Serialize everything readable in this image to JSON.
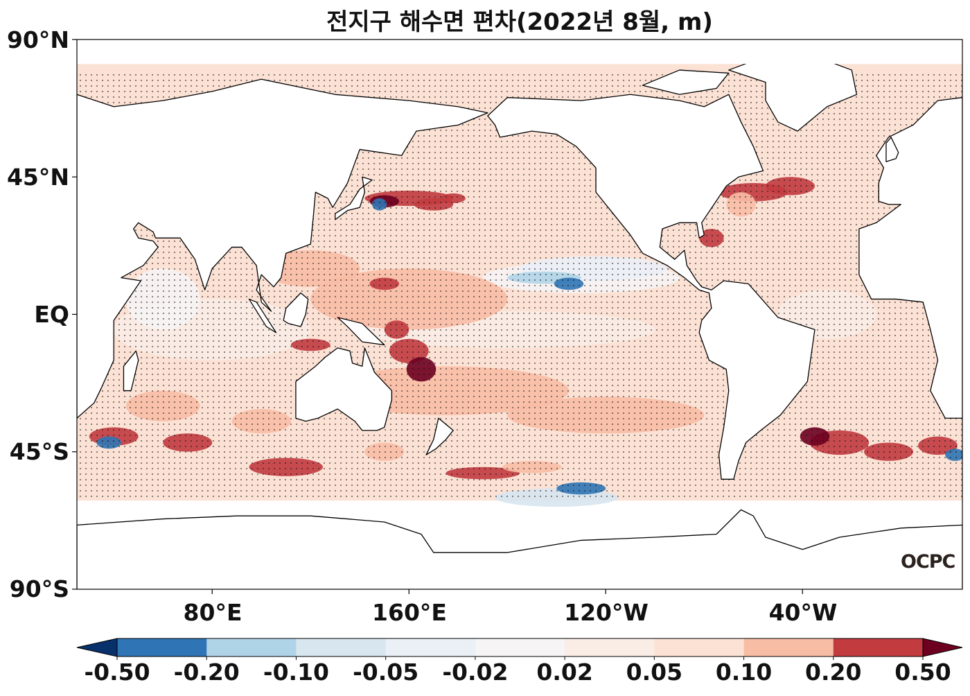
{
  "title": "전지구 해수면 편차(2022년 8월, m)",
  "axes": {
    "lat_ticks": [
      "90°N",
      "45°N",
      "EQ",
      "45°S",
      "90°S"
    ],
    "lon_ticks": [
      "80°E",
      "160°E",
      "120°W",
      "40°W"
    ],
    "lon_range": [
      25,
      385
    ],
    "lat_range": [
      -90,
      90
    ]
  },
  "colorbar": {
    "levels": [
      "-0.50",
      "-0.20",
      "-0.10",
      "-0.05",
      "-0.02",
      "0.02",
      "0.05",
      "0.10",
      "0.20",
      "0.50"
    ],
    "colors": [
      "#08306b",
      "#2f74b4",
      "#b0d4e7",
      "#d7e6ef",
      "#eaf0f6",
      "#f6f4f4",
      "#f9ede6",
      "#fce2d5",
      "#f8bda5",
      "#c13b3f",
      "#6d0020"
    ],
    "extend": "both"
  },
  "stippling": "significance dots",
  "logo": "OCPC"
}
